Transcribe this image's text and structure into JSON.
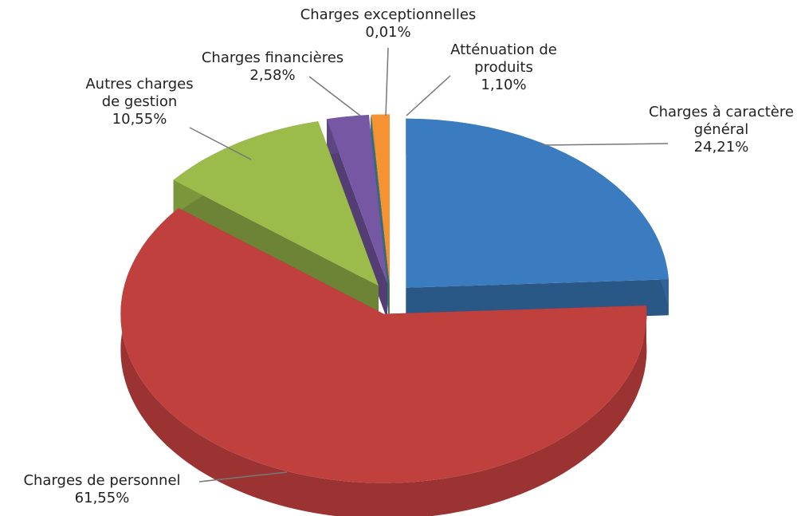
{
  "chart_data": {
    "type": "pie3d",
    "categories": [
      "Charges à caractère général",
      "Charges de personnel",
      "Autres charges de gestion",
      "Charges financières",
      "Charges exceptionnelles",
      "Atténuation de produits"
    ],
    "values": [
      24.21,
      61.55,
      10.55,
      2.58,
      0.01,
      1.1
    ],
    "value_labels": [
      "24,21%",
      "61,55%",
      "10,55%",
      "2,58%",
      "0,01%",
      "1,10%"
    ],
    "colors": [
      "#3b7cc0",
      "#c0403e",
      "#9bbb4b",
      "#7657a3",
      "#36a0b6",
      "#f59332"
    ]
  }
}
